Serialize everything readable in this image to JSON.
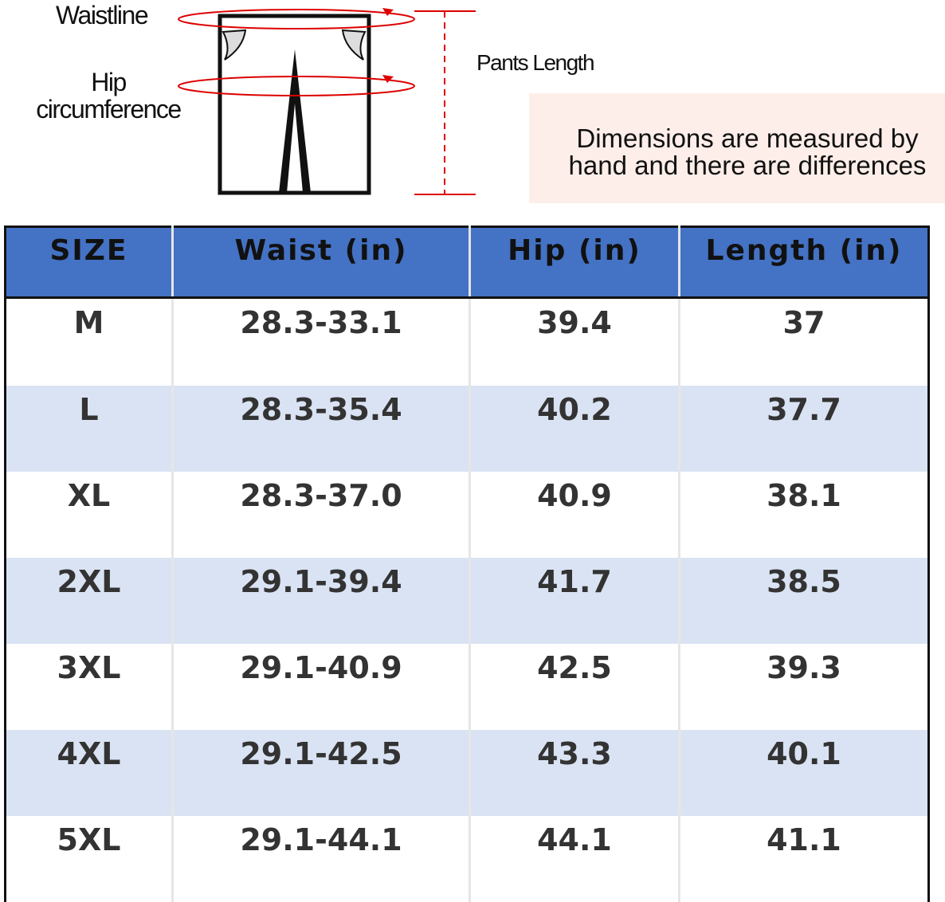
{
  "diagram": {
    "waistline": "Waistline",
    "hip": "Hip circumference",
    "pants_length": "Pants Length",
    "note": "Dimensions are measured by hand and there are differences"
  },
  "table": {
    "header": [
      "SIZE",
      "Waist (in)",
      "Hip (in)",
      "Length (in)"
    ],
    "rows": [
      [
        "M",
        "28.3-33.1",
        "39.4",
        "37"
      ],
      [
        "L",
        "28.3-35.4",
        "40.2",
        "37.7"
      ],
      [
        "XL",
        "28.3-37.0",
        "40.9",
        "38.1"
      ],
      [
        "2XL",
        "29.1-39.4",
        "41.7",
        "38.5"
      ],
      [
        "3XL",
        "29.1-40.9",
        "42.5",
        "39.3"
      ],
      [
        "4XL",
        "29.1-42.5",
        "43.3",
        "40.1"
      ],
      [
        "5XL",
        "29.1-44.1",
        "44.1",
        "41.1"
      ]
    ]
  }
}
